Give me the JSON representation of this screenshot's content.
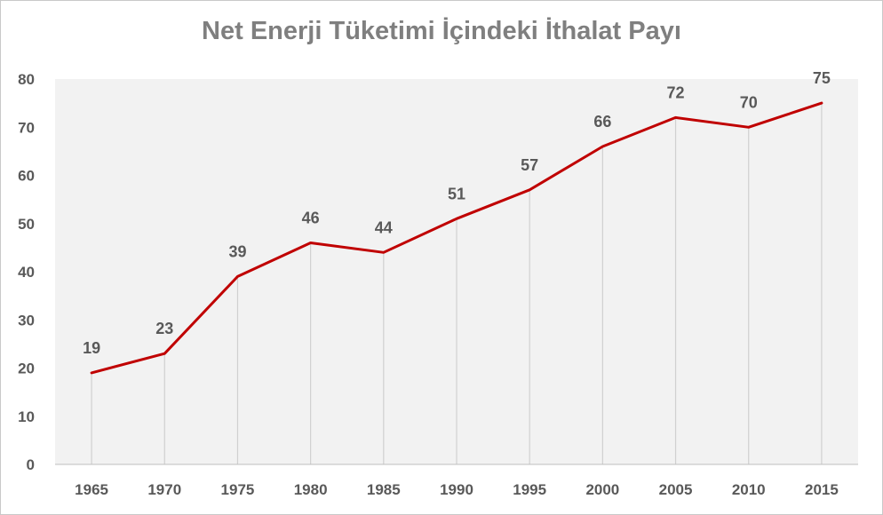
{
  "chart_data": {
    "type": "line",
    "title": "Net Enerji Tüketimi İçindeki İthalat Payı",
    "xlabel": "",
    "ylabel": "",
    "categories": [
      "1965",
      "1970",
      "1975",
      "1980",
      "1985",
      "1990",
      "1995",
      "2000",
      "2005",
      "2010",
      "2015"
    ],
    "series": [
      {
        "values": [
          19,
          23,
          39,
          46,
          44,
          51,
          57,
          66,
          72,
          70,
          75
        ]
      }
    ],
    "data_labels": [
      "19",
      "23",
      "39",
      "46",
      "44",
      "51",
      "57",
      "66",
      "72",
      "70",
      "75"
    ],
    "ylim": [
      0,
      80
    ],
    "yticks": [
      "0",
      "10",
      "20",
      "30",
      "40",
      "50",
      "60",
      "70",
      "80"
    ],
    "drop_lines": true,
    "grid": false,
    "legend": "none",
    "colors": {
      "line": "#c00000",
      "plot_background": "#f2f2f2",
      "drop_line": "#d0d0d0",
      "text": "#595959",
      "title": "#7f7f7f"
    }
  }
}
